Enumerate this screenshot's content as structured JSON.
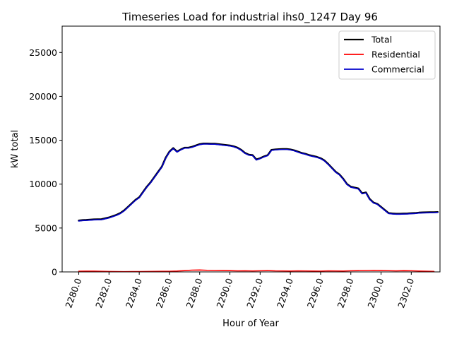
{
  "chart_data": {
    "type": "line",
    "title": "Timeseries Load for industrial ihs0_1247  Day 96",
    "xlabel": "Hour of Year",
    "ylabel": "kW total",
    "xlim": [
      2278.9,
      2303.9
    ],
    "ylim": [
      0,
      28000
    ],
    "xticks": [
      2280.0,
      2282.0,
      2284.0,
      2286.0,
      2288.0,
      2290.0,
      2292.0,
      2294.0,
      2296.0,
      2298.0,
      2300.0,
      2302.0
    ],
    "xtick_labels": [
      "2280.0",
      "2282.0",
      "2284.0",
      "2286.0",
      "2288.0",
      "2290.0",
      "2292.0",
      "2294.0",
      "2296.0",
      "2298.0",
      "2300.0",
      "2302.0"
    ],
    "yticks": [
      0,
      5000,
      10000,
      15000,
      20000,
      25000
    ],
    "ytick_labels": [
      "0",
      "5000",
      "10000",
      "15000",
      "20000",
      "25000"
    ],
    "legend_position": "top-right",
    "series": [
      {
        "name": "Total",
        "color": "#000000",
        "x": [
          2280.0,
          2280.25,
          2280.5,
          2280.75,
          2281.0,
          2281.25,
          2281.5,
          2281.75,
          2282.0,
          2282.25,
          2282.5,
          2282.75,
          2283.0,
          2283.25,
          2283.5,
          2283.75,
          2284.0,
          2284.25,
          2284.5,
          2284.75,
          2285.0,
          2285.25,
          2285.5,
          2285.75,
          2286.0,
          2286.25,
          2286.5,
          2286.75,
          2287.0,
          2287.25,
          2287.5,
          2287.75,
          2288.0,
          2288.25,
          2288.5,
          2288.75,
          2289.0,
          2289.25,
          2289.5,
          2289.75,
          2290.0,
          2290.25,
          2290.5,
          2290.75,
          2291.0,
          2291.25,
          2291.5,
          2291.75,
          2292.0,
          2292.25,
          2292.5,
          2292.75,
          2293.0,
          2293.25,
          2293.5,
          2293.75,
          2294.0,
          2294.25,
          2294.5,
          2294.75,
          2295.0,
          2295.25,
          2295.5,
          2295.75,
          2296.0,
          2296.25,
          2296.5,
          2296.75,
          2297.0,
          2297.25,
          2297.5,
          2297.75,
          2298.0,
          2298.25,
          2298.5,
          2298.75,
          2299.0,
          2299.25,
          2299.5,
          2299.75,
          2300.0,
          2300.25,
          2300.5,
          2300.75,
          2301.0,
          2301.25,
          2301.5,
          2301.75,
          2302.0,
          2302.25,
          2302.5,
          2302.75,
          2303.0,
          2303.25,
          2303.5,
          2303.75
        ],
        "y": [
          5850,
          5900,
          5920,
          5950,
          5980,
          5990,
          6000,
          6100,
          6200,
          6350,
          6500,
          6700,
          7000,
          7400,
          7800,
          8200,
          8500,
          9100,
          9700,
          10200,
          10800,
          11400,
          12000,
          13000,
          13700,
          14100,
          13700,
          13950,
          14150,
          14150,
          14250,
          14400,
          14550,
          14620,
          14620,
          14600,
          14600,
          14550,
          14500,
          14450,
          14400,
          14300,
          14150,
          13900,
          13550,
          13350,
          13300,
          12800,
          12950,
          13150,
          13300,
          13900,
          13950,
          13980,
          14000,
          14000,
          13950,
          13850,
          13700,
          13550,
          13450,
          13300,
          13200,
          13100,
          12950,
          12700,
          12300,
          11850,
          11400,
          11100,
          10600,
          10000,
          9700,
          9600,
          9500,
          8950,
          9050,
          8300,
          7900,
          7750,
          7400,
          7050,
          6700,
          6650,
          6620,
          6620,
          6640,
          6650,
          6680,
          6700,
          6750,
          6770,
          6780,
          6790,
          6800,
          6820
        ]
      },
      {
        "name": "Residential",
        "color": "#ff0000",
        "x": [
          2280.0,
          2280.5,
          2281.0,
          2281.5,
          2282.0,
          2282.5,
          2283.0,
          2283.5,
          2284.0,
          2284.5,
          2285.0,
          2285.5,
          2286.0,
          2286.5,
          2287.0,
          2287.5,
          2288.0,
          2288.5,
          2289.0,
          2289.5,
          2290.0,
          2290.5,
          2291.0,
          2291.5,
          2292.0,
          2292.5,
          2293.0,
          2293.5,
          2294.0,
          2294.5,
          2295.0,
          2295.5,
          2296.0,
          2296.5,
          2297.0,
          2297.5,
          2298.0,
          2298.5,
          2299.0,
          2299.5,
          2300.0,
          2300.5,
          2301.0,
          2301.5,
          2302.0,
          2302.5,
          2303.0,
          2303.5
        ],
        "y": [
          80,
          90,
          85,
          70,
          50,
          40,
          30,
          35,
          40,
          50,
          60,
          70,
          70,
          100,
          150,
          200,
          220,
          180,
          160,
          170,
          150,
          120,
          130,
          110,
          130,
          150,
          120,
          110,
          100,
          120,
          110,
          100,
          90,
          120,
          110,
          100,
          130,
          150,
          160,
          180,
          170,
          140,
          120,
          150,
          130,
          100,
          80,
          60
        ]
      },
      {
        "name": "Commercial",
        "color": "#0000cc",
        "x": [
          2280.0,
          2280.25,
          2280.5,
          2280.75,
          2281.0,
          2281.25,
          2281.5,
          2281.75,
          2282.0,
          2282.25,
          2282.5,
          2282.75,
          2283.0,
          2283.25,
          2283.5,
          2283.75,
          2284.0,
          2284.25,
          2284.5,
          2284.75,
          2285.0,
          2285.25,
          2285.5,
          2285.75,
          2286.0,
          2286.25,
          2286.5,
          2286.75,
          2287.0,
          2287.25,
          2287.5,
          2287.75,
          2288.0,
          2288.25,
          2288.5,
          2288.75,
          2289.0,
          2289.25,
          2289.5,
          2289.75,
          2290.0,
          2290.25,
          2290.5,
          2290.75,
          2291.0,
          2291.25,
          2291.5,
          2291.75,
          2292.0,
          2292.25,
          2292.5,
          2292.75,
          2293.0,
          2293.25,
          2293.5,
          2293.75,
          2294.0,
          2294.25,
          2294.5,
          2294.75,
          2295.0,
          2295.25,
          2295.5,
          2295.75,
          2296.0,
          2296.25,
          2296.5,
          2296.75,
          2297.0,
          2297.25,
          2297.5,
          2297.75,
          2298.0,
          2298.25,
          2298.5,
          2298.75,
          2299.0,
          2299.25,
          2299.5,
          2299.75,
          2300.0,
          2300.25,
          2300.5,
          2300.75,
          2301.0,
          2301.25,
          2301.5,
          2301.75,
          2302.0,
          2302.25,
          2302.5,
          2302.75,
          2303.0,
          2303.25,
          2303.5,
          2303.75
        ],
        "y": [
          5800,
          5850,
          5870,
          5900,
          5930,
          5940,
          5950,
          6050,
          6150,
          6300,
          6450,
          6650,
          6950,
          7350,
          7750,
          8150,
          8450,
          9050,
          9650,
          10150,
          10750,
          11350,
          11950,
          12950,
          13650,
          14050,
          13650,
          13900,
          14100,
          14100,
          14200,
          14350,
          14500,
          14570,
          14570,
          14550,
          14550,
          14500,
          14450,
          14400,
          14350,
          14250,
          14100,
          13850,
          13500,
          13300,
          13250,
          12750,
          12900,
          13100,
          13250,
          13850,
          13900,
          13930,
          13950,
          13950,
          13900,
          13800,
          13650,
          13500,
          13400,
          13250,
          13150,
          13050,
          12900,
          12650,
          12250,
          11800,
          11350,
          11050,
          10550,
          9950,
          9650,
          9550,
          9450,
          8900,
          9000,
          8250,
          7850,
          7700,
          7350,
          7000,
          6650,
          6600,
          6570,
          6570,
          6590,
          6600,
          6630,
          6650,
          6700,
          6720,
          6730,
          6740,
          6750,
          6770
        ]
      }
    ]
  }
}
